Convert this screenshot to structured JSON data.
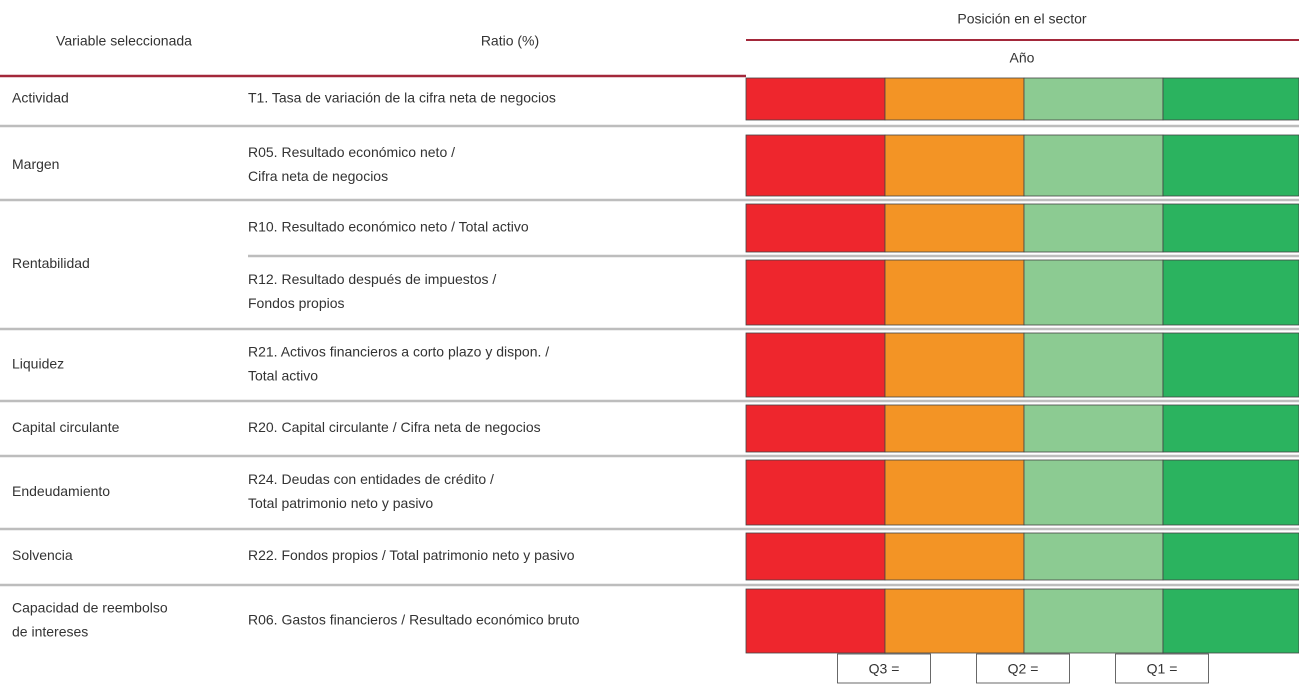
{
  "header": {
    "variable": "Variable seleccionada",
    "ratio": "Ratio (%)",
    "position": "Posición en el sector",
    "year": "Año"
  },
  "quartile_colors": [
    "#ee262d",
    "#f39425",
    "#8ccb92",
    "#2bb35f"
  ],
  "quartile_labels": [
    "Q3 =",
    "Q2 =",
    "Q1 ="
  ],
  "groups": [
    {
      "variable": [
        "Actividad"
      ],
      "ratios": [
        [
          "T1. Tasa de variación de la cifra neta de negocios"
        ]
      ]
    },
    {
      "variable": [
        "Margen"
      ],
      "ratios": [
        [
          "R05. Resultado económico neto /",
          "Cifra neta de negocios"
        ]
      ]
    },
    {
      "variable": [
        "Rentabilidad"
      ],
      "ratios": [
        [
          "R10. Resultado económico neto / Total activo"
        ],
        [
          "R12. Resultado después de impuestos /",
          "Fondos propios"
        ]
      ]
    },
    {
      "variable": [
        "Liquidez"
      ],
      "ratios": [
        [
          "R21. Activos financieros a corto plazo y dispon. /",
          "Total activo"
        ]
      ]
    },
    {
      "variable": [
        "Capital circulante"
      ],
      "ratios": [
        [
          "R20. Capital circulante / Cifra neta de negocios"
        ]
      ]
    },
    {
      "variable": [
        "Endeudamiento"
      ],
      "ratios": [
        [
          "R24. Deudas con entidades de crédito /",
          "Total patrimonio neto y pasivo"
        ]
      ]
    },
    {
      "variable": [
        "Solvencia"
      ],
      "ratios": [
        [
          "R22. Fondos propios / Total patrimonio neto y pasivo"
        ]
      ]
    },
    {
      "variable": [
        "Capacidad de reembolso",
        "de intereses"
      ],
      "ratios": [
        [
          "R06. Gastos financieros / Resultado económico bruto"
        ]
      ]
    }
  ]
}
